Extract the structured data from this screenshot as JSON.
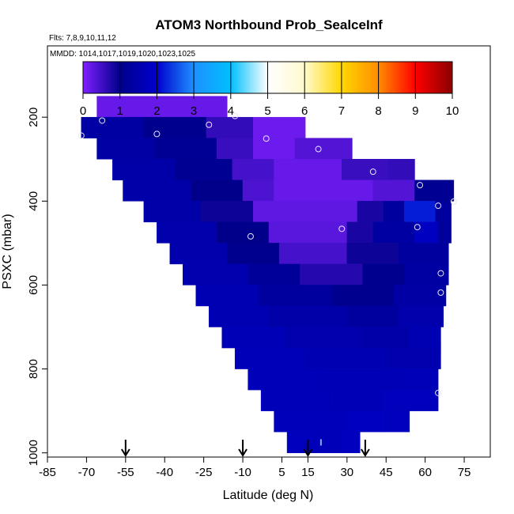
{
  "chart_data": {
    "type": "heatmap",
    "title": "ATOM3 Northbound Prob_SealceInf",
    "flights_label": "Flts: 7,8,9,10,11,12",
    "dates_label": "MMDD: 1014,1017,1019,1020,1023,1025",
    "xlabel": "Latitude (deg N)",
    "ylabel": "PSXC (mbar)",
    "xlim": [
      -85,
      85
    ],
    "ylim": [
      1010,
      30
    ],
    "x_ticks": [
      -85,
      -70,
      -55,
      -40,
      -25,
      -10,
      5,
      15,
      30,
      45,
      60,
      75
    ],
    "y_ticks": [
      200,
      400,
      600,
      800,
      1000
    ],
    "colorbar": {
      "range": [
        0,
        10
      ],
      "ticks": [
        0,
        1,
        2,
        3,
        4,
        5,
        6,
        7,
        8,
        9,
        10
      ],
      "colors": [
        "#7f1fff",
        "#00008b",
        "#0000cd",
        "#1e90ff",
        "#00bfff",
        "#ffffff",
        "#fffacd",
        "#ffd700",
        "#ff8c00",
        "#ff0000",
        "#8b0000"
      ]
    },
    "grid": false,
    "field_layers": [
      {
        "p": 175,
        "segments": [
          [
            -66,
            -16,
            0.2
          ]
        ]
      },
      {
        "p": 225,
        "segments": [
          [
            -72,
            -66,
            1.4
          ],
          [
            -66,
            -48,
            1.35
          ],
          [
            -48,
            -24,
            1.05
          ],
          [
            -24,
            -6,
            0.6
          ],
          [
            -6,
            14,
            0.15
          ]
        ]
      },
      {
        "p": 275,
        "segments": [
          [
            -66,
            -44,
            1.4
          ],
          [
            -44,
            -20,
            1.15
          ],
          [
            -20,
            -6,
            0.55
          ],
          [
            -6,
            10,
            0.15
          ],
          [
            10,
            32,
            0.35
          ]
        ]
      },
      {
        "p": 325,
        "segments": [
          [
            -60,
            -36,
            1.45
          ],
          [
            -36,
            -14,
            1.1
          ],
          [
            -14,
            2,
            0.45
          ],
          [
            2,
            28,
            0.2
          ],
          [
            28,
            46,
            0.55
          ],
          [
            46,
            56,
            0.6
          ]
        ]
      },
      {
        "p": 375,
        "segments": [
          [
            -56,
            -30,
            1.45
          ],
          [
            -30,
            -10,
            1.0
          ],
          [
            -10,
            2,
            0.4
          ],
          [
            2,
            40,
            0.2
          ],
          [
            40,
            56,
            0.35
          ],
          [
            56,
            71,
            1.1
          ]
        ]
      },
      {
        "p": 425,
        "segments": [
          [
            -48,
            -26,
            1.45
          ],
          [
            -26,
            -6,
            0.9
          ],
          [
            -6,
            34,
            0.25
          ],
          [
            34,
            44,
            0.8
          ],
          [
            44,
            52,
            1.3
          ],
          [
            52,
            64,
            2.2
          ],
          [
            64,
            70,
            1.3
          ]
        ]
      },
      {
        "p": 475,
        "segments": [
          [
            -43,
            -20,
            1.5
          ],
          [
            -20,
            0,
            1.0
          ],
          [
            0,
            30,
            0.3
          ],
          [
            30,
            40,
            0.8
          ],
          [
            40,
            56,
            1.35
          ],
          [
            56,
            65,
            1.8
          ],
          [
            65,
            70,
            1.25
          ]
        ]
      },
      {
        "p": 525,
        "segments": [
          [
            -38,
            -16,
            1.5
          ],
          [
            -16,
            4,
            1.05
          ],
          [
            4,
            30,
            0.45
          ],
          [
            30,
            50,
            0.9
          ],
          [
            50,
            69,
            1.3
          ]
        ]
      },
      {
        "p": 575,
        "segments": [
          [
            -33,
            -8,
            1.55
          ],
          [
            -8,
            12,
            1.2
          ],
          [
            12,
            36,
            0.7
          ],
          [
            36,
            52,
            1.05
          ],
          [
            52,
            69,
            1.35
          ]
        ]
      },
      {
        "p": 625,
        "segments": [
          [
            -28,
            -4,
            1.6
          ],
          [
            -4,
            24,
            1.3
          ],
          [
            24,
            48,
            1.05
          ],
          [
            48,
            68,
            1.4
          ]
        ]
      },
      {
        "p": 675,
        "segments": [
          [
            -23,
            0,
            1.6
          ],
          [
            0,
            30,
            1.45
          ],
          [
            30,
            50,
            1.3
          ],
          [
            50,
            67,
            1.5
          ]
        ]
      },
      {
        "p": 725,
        "segments": [
          [
            -18,
            6,
            1.65
          ],
          [
            6,
            36,
            1.55
          ],
          [
            36,
            54,
            1.45
          ],
          [
            54,
            66,
            1.6
          ]
        ]
      },
      {
        "p": 775,
        "segments": [
          [
            -13,
            14,
            1.7
          ],
          [
            14,
            44,
            1.6
          ],
          [
            44,
            66,
            1.55
          ]
        ]
      },
      {
        "p": 825,
        "segments": [
          [
            -8,
            20,
            1.7
          ],
          [
            20,
            50,
            1.65
          ],
          [
            50,
            65,
            1.7
          ]
        ]
      },
      {
        "p": 875,
        "segments": [
          [
            -3,
            24,
            1.7
          ],
          [
            24,
            44,
            1.65
          ],
          [
            44,
            65,
            1.75
          ]
        ]
      },
      {
        "p": 925,
        "segments": [
          [
            2,
            30,
            1.72
          ],
          [
            30,
            44,
            1.8
          ],
          [
            44,
            54,
            1.75
          ]
        ]
      },
      {
        "p": 975,
        "segments": [
          [
            7,
            17,
            1.75
          ],
          [
            17,
            28,
            1.7
          ],
          [
            28,
            35,
            1.75
          ]
        ]
      }
    ],
    "observations": [
      {
        "lat": -72,
        "p": 244
      },
      {
        "lat": -64,
        "p": 208
      },
      {
        "lat": -43,
        "p": 240
      },
      {
        "lat": -23,
        "p": 218
      },
      {
        "lat": -13,
        "p": 197
      },
      {
        "lat": -1,
        "p": 251
      },
      {
        "lat": 19,
        "p": 276
      },
      {
        "lat": 40,
        "p": 330
      },
      {
        "lat": 58,
        "p": 362
      },
      {
        "lat": 65,
        "p": 411
      },
      {
        "lat": 71,
        "p": 401
      },
      {
        "lat": 57,
        "p": 462
      },
      {
        "lat": 28,
        "p": 466
      },
      {
        "lat": -7,
        "p": 484
      },
      {
        "lat": 66,
        "p": 572
      },
      {
        "lat": 66,
        "p": 618
      },
      {
        "lat": 65,
        "p": 857
      }
    ],
    "surface_markers": [
      {
        "lat": 20,
        "p": 975
      }
    ],
    "arrows": [
      -55,
      -10,
      15,
      37
    ]
  }
}
